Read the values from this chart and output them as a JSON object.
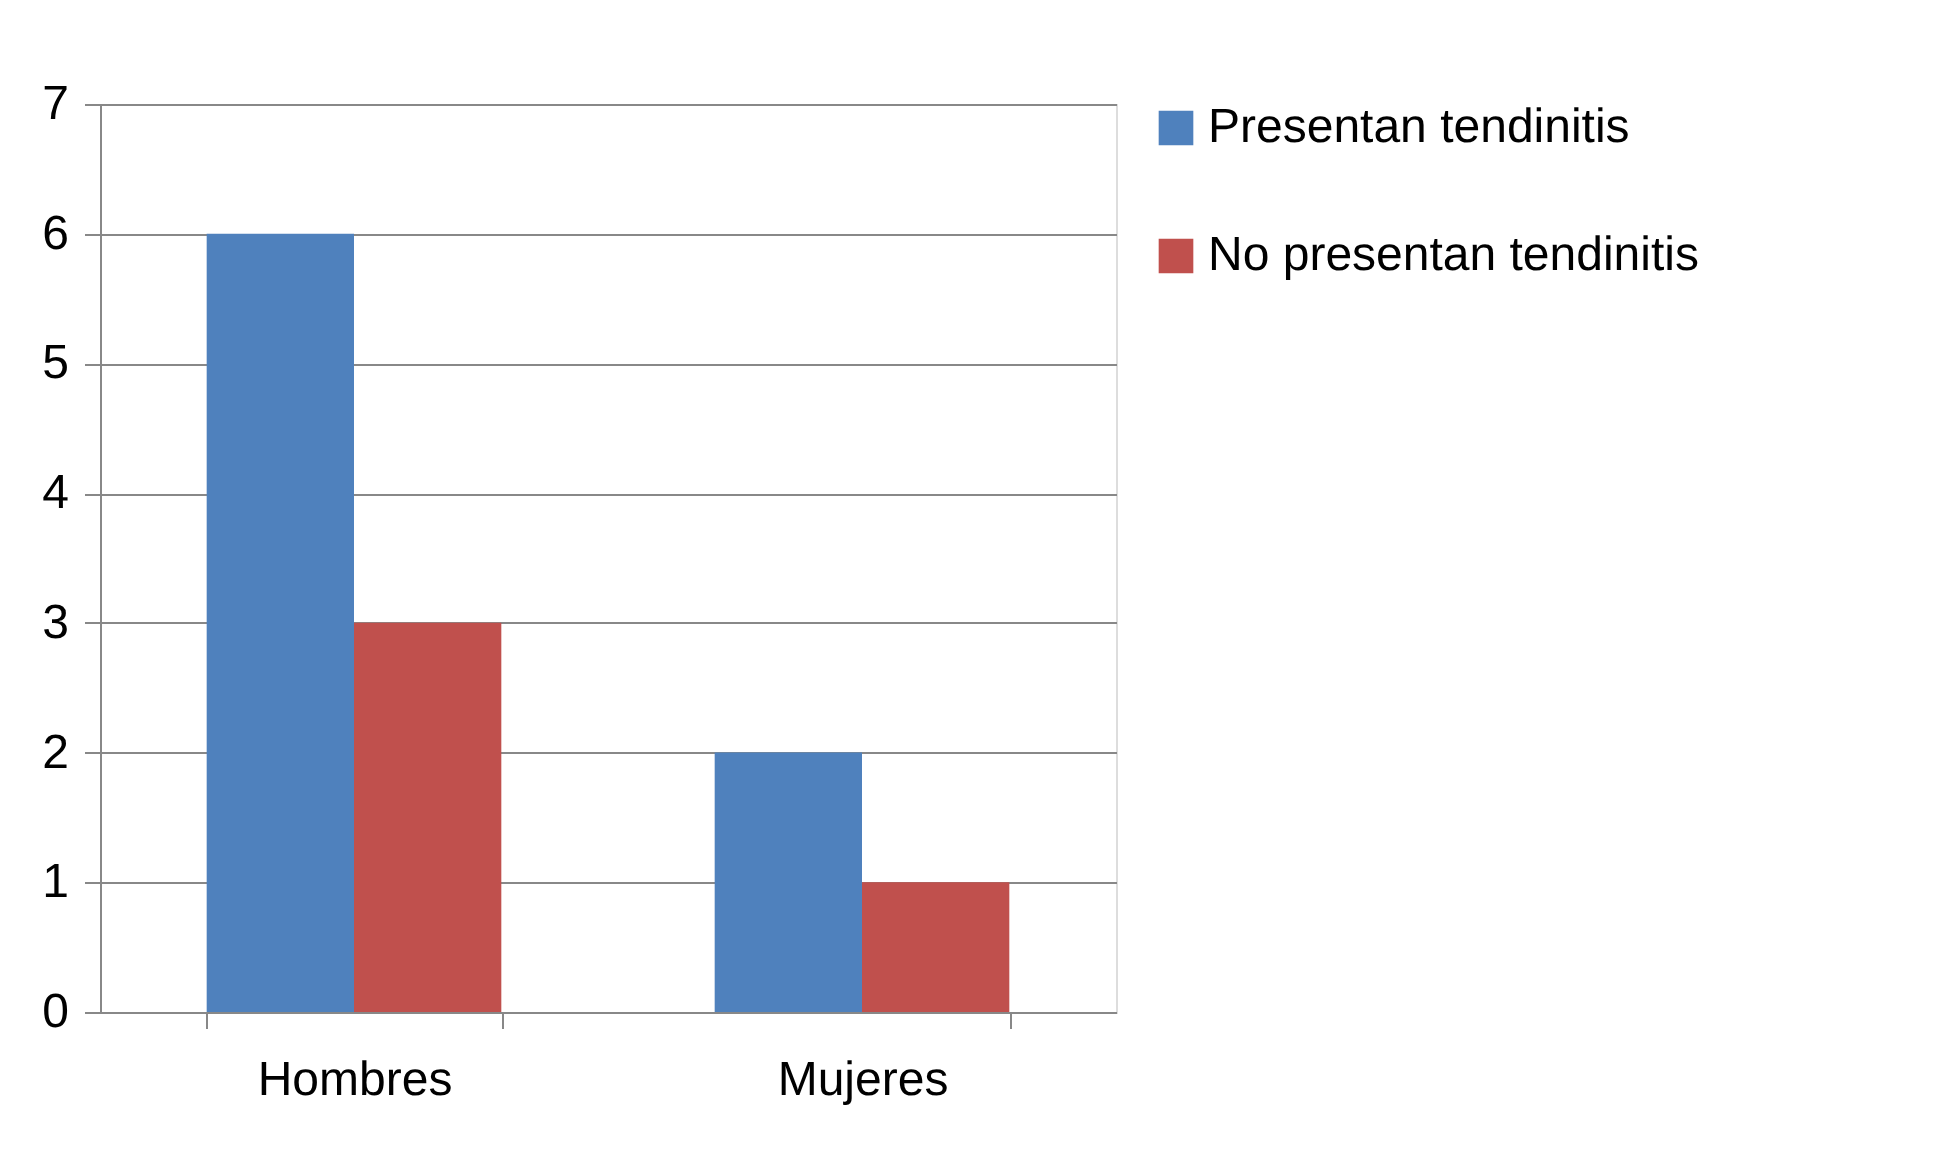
{
  "chart_data": {
    "type": "bar",
    "categories": [
      "Hombres",
      "Mujeres"
    ],
    "series": [
      {
        "name": "Presentan tendinitis",
        "color": "#4f81bd",
        "values": [
          6,
          2
        ]
      },
      {
        "name": "No presentan tendinitis",
        "color": "#c0504d",
        "values": [
          3,
          1
        ]
      }
    ],
    "ylim": [
      0,
      7
    ],
    "yticks": [
      0,
      1,
      2,
      3,
      4,
      5,
      6,
      7
    ],
    "grid": "y",
    "legend": "right"
  }
}
